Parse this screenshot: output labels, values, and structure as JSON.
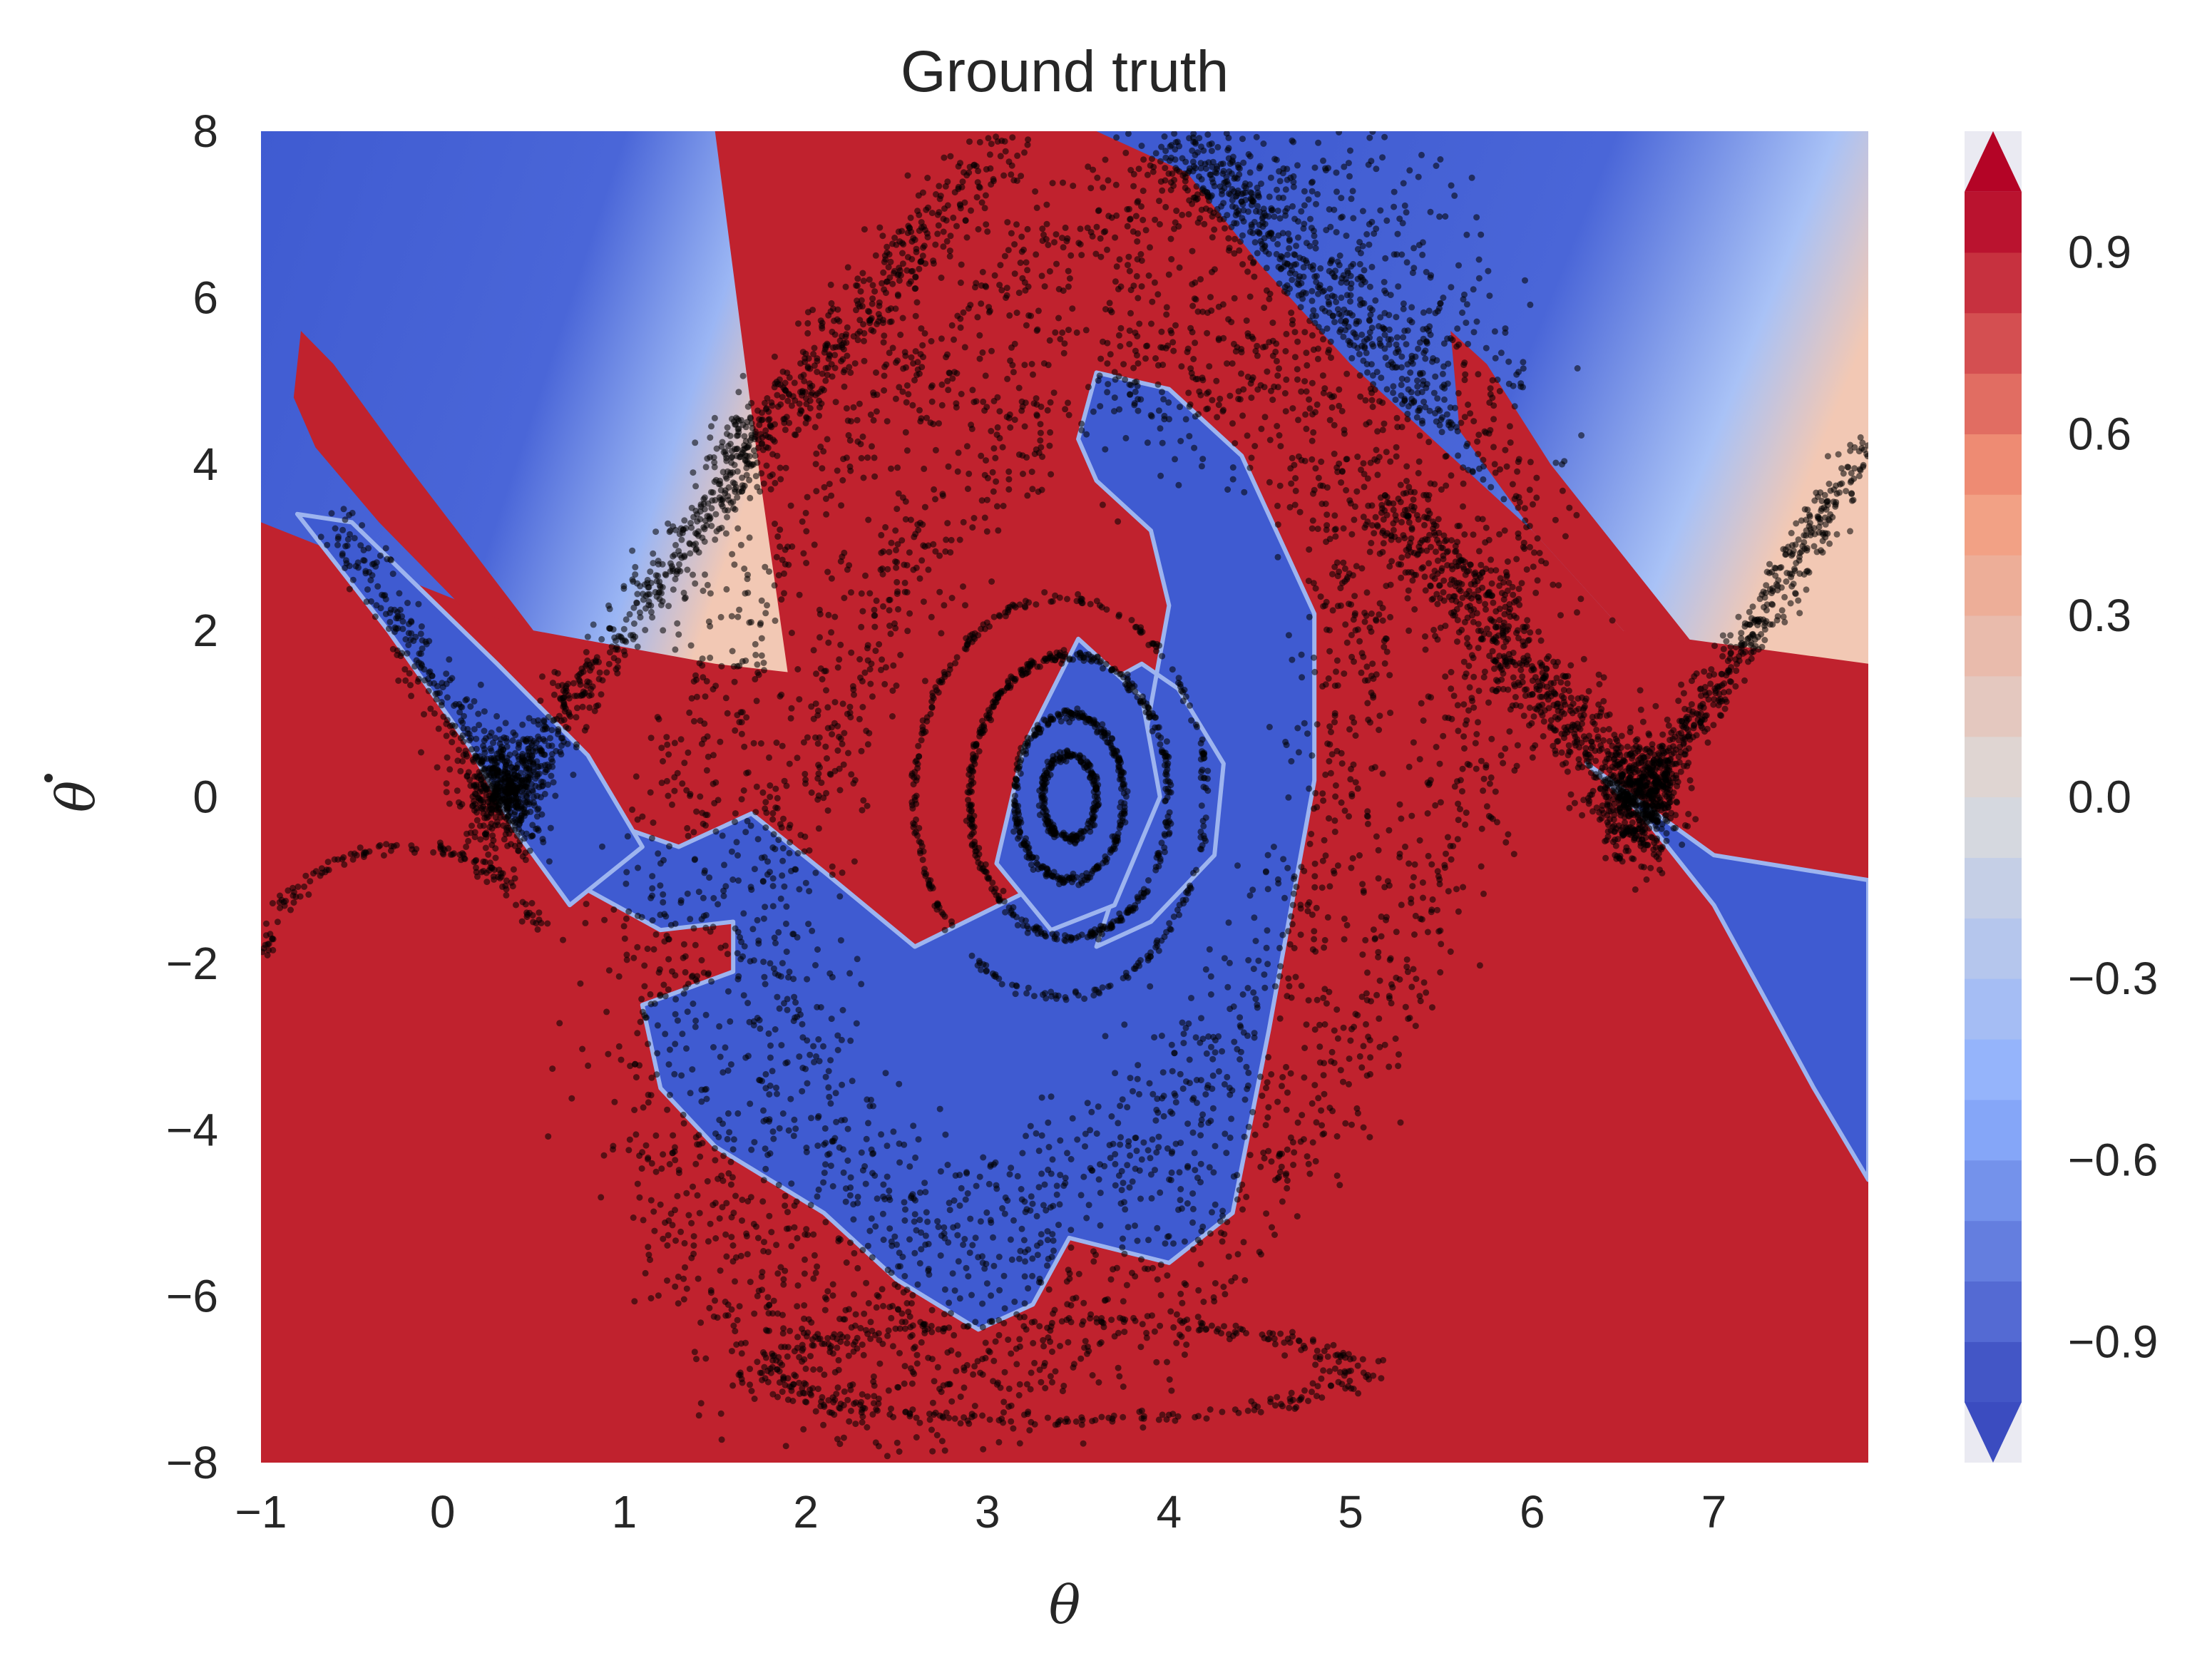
{
  "chart_data": {
    "type": "heatmap",
    "title": "Ground truth",
    "xlabel": "θ",
    "ylabel": "θ̇",
    "ylabel_base": "θ",
    "xlim": [
      -1,
      7.85
    ],
    "ylim": [
      -8,
      8
    ],
    "x_ticks": [
      -1,
      0,
      1,
      2,
      3,
      4,
      5,
      6,
      7
    ],
    "x_tick_labels": [
      "−1",
      "0",
      "1",
      "2",
      "3",
      "4",
      "5",
      "6",
      "7"
    ],
    "y_ticks": [
      8,
      6,
      4,
      2,
      0,
      -2,
      -4,
      -6,
      -8
    ],
    "y_tick_labels": [
      "8",
      "6",
      "4",
      "2",
      "0",
      "−2",
      "−4",
      "−6",
      "−8"
    ],
    "grid": false,
    "colormap": "coolwarm",
    "colors": {
      "low": "#3b4cc0",
      "mid": "#dddcdc",
      "high": "#b40426",
      "red_fill": "#c0222e",
      "blue_fill": "#3f5bd1",
      "points": "#000000"
    },
    "colorbar": {
      "range": [
        -1.1,
        1.1
      ],
      "extend": "both",
      "levels": [
        -1.0,
        -0.9,
        -0.8,
        -0.7,
        -0.6,
        -0.5,
        -0.4,
        -0.3,
        -0.2,
        -0.1,
        0.0,
        0.1,
        0.2,
        0.3,
        0.4,
        0.5,
        0.6,
        0.7,
        0.8,
        0.9,
        1.0
      ],
      "ticks": [
        0.9,
        0.6,
        0.3,
        0.0,
        -0.3,
        -0.6,
        -0.9
      ],
      "tick_labels": [
        "0.9",
        "0.6",
        "0.3",
        "0.0",
        "−0.3",
        "−0.6",
        "−0.9"
      ]
    },
    "regions": {
      "red": [
        {
          "name": "central",
          "points": [
            [
              1.5,
              8
            ],
            [
              3.6,
              8
            ],
            [
              4.1,
              7.5
            ],
            [
              4.5,
              6.4
            ],
            [
              5.0,
              5.2
            ],
            [
              5.6,
              4.0
            ],
            [
              6.0,
              3.2
            ],
            [
              6.5,
              2.0
            ],
            [
              7.85,
              1.6
            ],
            [
              7.85,
              -8
            ],
            [
              -1,
              -8
            ],
            [
              -1,
              3.3
            ],
            [
              0.5,
              2.0
            ],
            [
              1.5,
              1.6
            ],
            [
              1.9,
              1.5
            ],
            [
              1.75,
              3.8
            ],
            [
              1.5,
              8
            ]
          ]
        },
        {
          "name": "left-streak",
          "points": [
            [
              -0.78,
              5.6
            ],
            [
              -0.6,
              5.2
            ],
            [
              -0.2,
              4.0
            ],
            [
              0.5,
              2.0
            ],
            [
              0.1,
              2.3
            ],
            [
              -0.35,
              3.3
            ],
            [
              -0.7,
              4.2
            ],
            [
              -0.82,
              4.8
            ]
          ]
        },
        {
          "name": "right-streak",
          "points": [
            [
              5.55,
              5.6
            ],
            [
              5.75,
              5.2
            ],
            [
              6.1,
              4.0
            ],
            [
              6.9,
              1.8
            ],
            [
              6.5,
              2.0
            ],
            [
              6.0,
              3.2
            ],
            [
              5.6,
              4.4
            ]
          ]
        }
      ],
      "blue": [
        {
          "name": "central-swirl",
          "points": [
            [
              3.6,
              5.1
            ],
            [
              4.0,
              4.9
            ],
            [
              4.4,
              4.1
            ],
            [
              4.8,
              2.2
            ],
            [
              4.8,
              0.2
            ],
            [
              4.55,
              -2.8
            ],
            [
              4.35,
              -5.0
            ],
            [
              4.0,
              -5.6
            ],
            [
              3.45,
              -5.3
            ],
            [
              3.25,
              -6.1
            ],
            [
              2.95,
              -6.4
            ],
            [
              2.5,
              -5.8
            ],
            [
              2.1,
              -5.0
            ],
            [
              1.5,
              -4.2
            ],
            [
              1.2,
              -3.5
            ],
            [
              1.1,
              -2.5
            ],
            [
              1.6,
              -2.1
            ],
            [
              1.6,
              -1.5
            ],
            [
              1.2,
              -1.6
            ],
            [
              0.7,
              -1.0
            ],
            [
              0.45,
              0.1
            ],
            [
              0.6,
              0.6
            ],
            [
              0.9,
              -0.3
            ],
            [
              1.3,
              -0.6
            ],
            [
              1.7,
              -0.2
            ],
            [
              2.1,
              -0.9
            ],
            [
              2.6,
              -1.8
            ],
            [
              3.25,
              -1.1
            ],
            [
              3.45,
              0.2
            ],
            [
              3.6,
              1.3
            ],
            [
              3.85,
              1.6
            ],
            [
              4.05,
              1.3
            ],
            [
              4.3,
              0.4
            ],
            [
              4.25,
              -0.7
            ],
            [
              3.9,
              -1.5
            ],
            [
              3.6,
              -1.8
            ],
            [
              3.75,
              -0.8
            ],
            [
              3.9,
              1.1
            ],
            [
              4.0,
              2.3
            ],
            [
              3.9,
              3.2
            ],
            [
              3.6,
              3.8
            ],
            [
              3.5,
              4.3
            ]
          ]
        },
        {
          "name": "central-core",
          "points": [
            [
              3.5,
              1.9
            ],
            [
              3.85,
              1.2
            ],
            [
              3.95,
              0.0
            ],
            [
              3.7,
              -1.3
            ],
            [
              3.35,
              -1.6
            ],
            [
              3.05,
              -0.8
            ],
            [
              3.2,
              0.6
            ]
          ]
        },
        {
          "name": "left-band",
          "points": [
            [
              -0.8,
              3.4
            ],
            [
              -0.5,
              3.3
            ],
            [
              0.3,
              1.6
            ],
            [
              0.8,
              0.5
            ],
            [
              1.1,
              -0.6
            ],
            [
              0.7,
              -1.3
            ],
            [
              0.4,
              -0.4
            ],
            [
              0.15,
              0.6
            ],
            [
              -0.3,
              2.0
            ]
          ]
        },
        {
          "name": "right-band",
          "points": [
            [
              6.3,
              0.4
            ],
            [
              7.0,
              -0.7
            ],
            [
              7.85,
              -1.0
            ],
            [
              7.85,
              -4.6
            ],
            [
              7.55,
              -3.5
            ],
            [
              7.3,
              -2.5
            ],
            [
              7.0,
              -1.3
            ],
            [
              6.6,
              -0.2
            ]
          ]
        }
      ]
    },
    "scatter_clusters": [
      {
        "name": "outer-ring",
        "type": "ellipse",
        "cx": 3.5,
        "cy": 0.2,
        "rx": 2.35,
        "ry": 7.1,
        "rotate": -30,
        "jitter": 0.35,
        "n": 2200
      },
      {
        "name": "mid-ring",
        "type": "ellipse",
        "cx": 3.45,
        "cy": 0.0,
        "rx": 1.6,
        "ry": 5.2,
        "rotate": -28,
        "jitter": 0.45,
        "n": 1600
      },
      {
        "name": "inner-orbit-1",
        "type": "orbit",
        "cx": 3.45,
        "cy": 0.0,
        "rx": 0.15,
        "ry": 0.5,
        "n": 220
      },
      {
        "name": "inner-orbit-2",
        "type": "orbit",
        "cx": 3.45,
        "cy": 0.0,
        "rx": 0.3,
        "ry": 1.0,
        "n": 320
      },
      {
        "name": "inner-orbit-3",
        "type": "orbit",
        "cx": 3.45,
        "cy": 0.0,
        "rx": 0.55,
        "ry": 1.7,
        "n": 420
      },
      {
        "name": "inner-orbit-4",
        "type": "orbit",
        "cx": 3.4,
        "cy": 0.0,
        "rx": 0.8,
        "ry": 2.4,
        "n": 300
      },
      {
        "name": "left-v-upper",
        "type": "line",
        "from": [
          0.35,
          0.0
        ],
        "to": [
          1.75,
          4.3
        ],
        "jitter": 0.07,
        "n": 500
      },
      {
        "name": "left-v-lower",
        "type": "line",
        "from": [
          0.35,
          0.0
        ],
        "to": [
          -0.6,
          3.3
        ],
        "jitter": 0.07,
        "n": 280
      },
      {
        "name": "right-v-upper",
        "type": "line",
        "from": [
          6.6,
          -0.1
        ],
        "to": [
          7.85,
          4.2
        ],
        "jitter": 0.06,
        "n": 520
      },
      {
        "name": "right-v-lower",
        "type": "line",
        "from": [
          6.6,
          -0.1
        ],
        "to": [
          5.2,
          3.6
        ],
        "jitter": 0.12,
        "n": 700
      },
      {
        "name": "upper-right-arm",
        "type": "line",
        "from": [
          4.1,
          7.8
        ],
        "to": [
          5.5,
          4.6
        ],
        "jitter": 0.12,
        "n": 450
      },
      {
        "name": "upper-left-arm",
        "type": "line",
        "from": [
          1.6,
          4.1
        ],
        "to": [
          3.1,
          7.9
        ],
        "jitter": 0.1,
        "n": 450
      },
      {
        "name": "left-knot",
        "type": "blob",
        "cx": 0.35,
        "cy": 0.0,
        "sx": 0.12,
        "sy": 0.35,
        "n": 420
      },
      {
        "name": "right-knot",
        "type": "blob",
        "cx": 6.6,
        "cy": -0.05,
        "sx": 0.1,
        "sy": 0.35,
        "n": 420
      },
      {
        "name": "left-edge-trail",
        "type": "arc",
        "cx": -0.2,
        "cy": -2.2,
        "rx": 0.8,
        "ry": 1.6,
        "start": 20,
        "end": 170,
        "n": 140
      },
      {
        "name": "bottom-trail",
        "type": "ellipse",
        "cx": 3.4,
        "cy": -6.9,
        "rx": 1.6,
        "ry": 0.6,
        "rotate": 0,
        "jitter": 0.25,
        "n": 350
      }
    ]
  }
}
